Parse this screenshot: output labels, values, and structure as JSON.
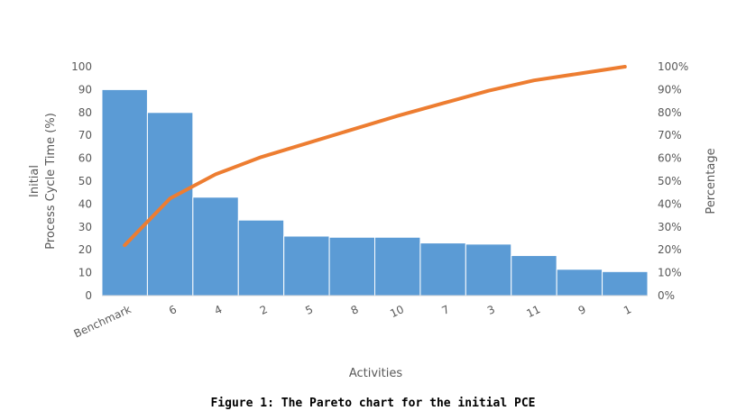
{
  "figure_caption": "Figure 1: The Pareto chart for the initial PCE",
  "colors": {
    "bar": "#5b9bd5",
    "bar_edge": "#ffffff",
    "line": "#ed7d31",
    "text": "#595959",
    "axis": "#d9d9d9"
  },
  "chart_data": {
    "type": "bar",
    "categories": [
      "Benchmark",
      "6",
      "4",
      "2",
      "5",
      "8",
      "10",
      "7",
      "3",
      "11",
      "9",
      "1"
    ],
    "series": [
      {
        "type": "bar",
        "axis": "left",
        "values": [
          90,
          80,
          43,
          33,
          26,
          25.5,
          25.5,
          23,
          22.5,
          17.5,
          11.5,
          10.5
        ]
      },
      {
        "type": "line",
        "axis": "right",
        "values": [
          22,
          42.5,
          53,
          60.5,
          66.5,
          72.5,
          78.5,
          84,
          89.5,
          94,
          97,
          100
        ]
      }
    ],
    "ylabel_lines": [
      "Initial",
      "Process Cycle Time (%)"
    ],
    "y2label": "Percentage",
    "xlabel": "Activities",
    "ylim": [
      0,
      100
    ],
    "y2lim": [
      0,
      100
    ],
    "y_ticks": [
      "0",
      "10",
      "20",
      "30",
      "40",
      "50",
      "60",
      "70",
      "80",
      "90",
      "100"
    ],
    "y2_ticks": [
      "0%",
      "10%",
      "20%",
      "30%",
      "40%",
      "50%",
      "60%",
      "70%",
      "80%",
      "90%",
      "100%"
    ],
    "grid": false,
    "legend": "none"
  }
}
